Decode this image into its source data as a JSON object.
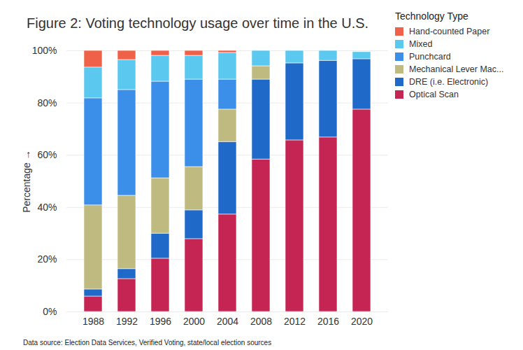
{
  "chart_data": {
    "type": "bar",
    "stacked": true,
    "grid": true,
    "legend": "right",
    "title": "Figure 2: Voting technology usage over time in the U.S.",
    "ylabel": "Percentage",
    "legend_title": "Technology Type",
    "source": "Data source: Election Data Services, Verified Voting, state/local election sources",
    "categories": [
      "1988",
      "1992",
      "1996",
      "2000",
      "2004",
      "2008",
      "2012",
      "2016",
      "2020"
    ],
    "ylim": [
      0,
      100
    ],
    "yticks": [
      {
        "value": 0,
        "label": "0%"
      },
      {
        "value": 20,
        "label": "20%"
      },
      {
        "value": 40,
        "label": "40%"
      },
      {
        "value": 60,
        "label": "60%"
      },
      {
        "value": 80,
        "label": "80%"
      },
      {
        "value": 100,
        "label": "100%"
      }
    ],
    "series": [
      {
        "name": "Hand-counted Paper",
        "color": "#f0614a",
        "values": [
          6.4,
          3.5,
          1.9,
          1.9,
          0.8,
          0,
          0,
          0,
          0
        ]
      },
      {
        "name": "Mixed",
        "color": "#5bc8ef",
        "values": [
          11.8,
          11.5,
          9.9,
          9.1,
          10.2,
          5.9,
          4.8,
          3.8,
          2.7
        ]
      },
      {
        "name": "Punchcard",
        "color": "#3b8fe8",
        "values": [
          41,
          40.5,
          37,
          33.5,
          11.5,
          0,
          0,
          0,
          0
        ]
      },
      {
        "name": "Mechanical Lever Mac...",
        "color": "#bfba7f",
        "values": [
          32.2,
          28.1,
          21.2,
          16.6,
          12.4,
          5.1,
          0,
          0,
          0
        ]
      },
      {
        "name": "DRE (i.e. Electronic)",
        "color": "#1f6ac9",
        "values": [
          2.7,
          3.8,
          9.6,
          11,
          27.8,
          30.6,
          29.5,
          29.4,
          19.3
        ]
      },
      {
        "name": "Optical Scan",
        "color": "#c42552",
        "values": [
          5.9,
          12.6,
          20.4,
          27.9,
          37.3,
          58.4,
          65.7,
          66.8,
          77.5
        ]
      }
    ]
  }
}
